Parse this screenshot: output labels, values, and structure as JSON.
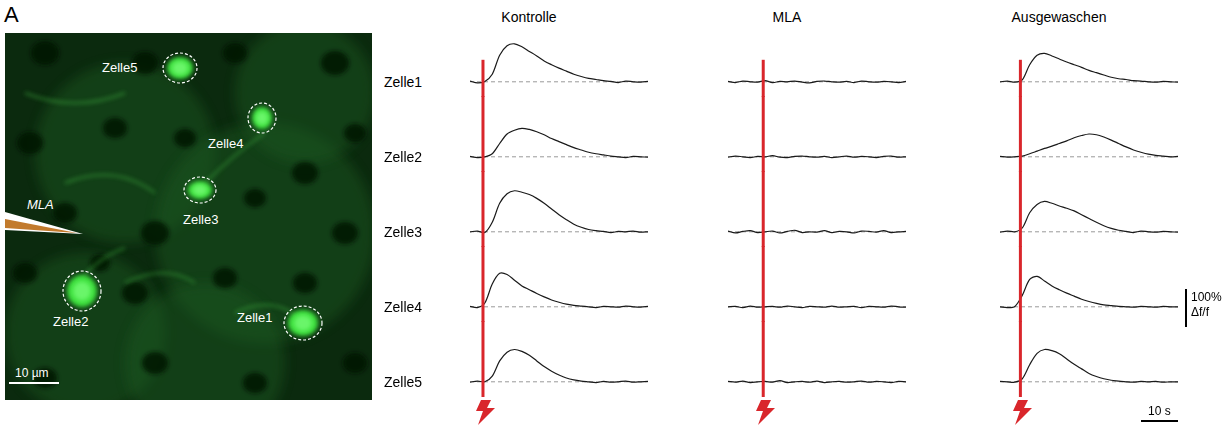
{
  "panel_label": "A",
  "image": {
    "pipette_label": "MLA",
    "cells": [
      "Zelle1",
      "Zelle2",
      "Zelle3",
      "Zelle4",
      "Zelle5"
    ],
    "scale_bar": {
      "value": 10,
      "label": "10 µm"
    }
  },
  "chart_data": {
    "type": "line",
    "x": [
      0,
      2,
      4,
      6,
      8,
      10,
      12,
      14,
      16,
      18,
      20,
      22,
      24,
      26,
      28,
      30,
      32,
      34,
      36,
      38,
      40,
      42,
      44,
      46,
      48
    ],
    "xlim": [
      0,
      48
    ],
    "ylim": [
      -40,
      160
    ],
    "tick_labels": false,
    "grid": false,
    "baseline": 0,
    "columns": [
      {
        "title": "Kontrolle",
        "stimulus_time": 3.5,
        "series": [
          {
            "name": "Zelle1",
            "color": "#1a1a1a",
            "values": [
              2,
              -3,
              1,
              20,
              70,
              95,
              100,
              92,
              80,
              68,
              55,
              45,
              36,
              28,
              20,
              14,
              9,
              6,
              3,
              1,
              -2,
              2,
              0,
              -1,
              1
            ]
          },
          {
            "name": "Zelle2",
            "color": "#1a1a1a",
            "values": [
              1,
              -2,
              0,
              8,
              35,
              60,
              70,
              75,
              72,
              66,
              58,
              48,
              40,
              32,
              24,
              18,
              12,
              8,
              5,
              2,
              0,
              -2,
              1,
              0,
              -1
            ]
          },
          {
            "name": "Zelle3",
            "color": "#1a1a1a",
            "values": [
              0,
              2,
              -2,
              25,
              75,
              100,
              108,
              104,
              98,
              88,
              75,
              60,
              45,
              32,
              20,
              12,
              6,
              3,
              1,
              -2,
              1,
              0,
              2,
              -1,
              0
            ]
          },
          {
            "name": "Zelle4",
            "color": "#1a1a1a",
            "values": [
              1,
              -2,
              10,
              60,
              88,
              85,
              70,
              55,
              45,
              35,
              26,
              18,
              12,
              7,
              4,
              2,
              0,
              -2,
              1,
              0,
              -1,
              2,
              0,
              -1,
              1
            ]
          },
          {
            "name": "Zelle5",
            "color": "#1a1a1a",
            "values": [
              -1,
              2,
              0,
              15,
              55,
              78,
              85,
              80,
              70,
              55,
              40,
              28,
              18,
              10,
              5,
              2,
              0,
              -2,
              1,
              -1,
              0,
              2,
              -1,
              0,
              1
            ]
          }
        ]
      },
      {
        "title": "MLA",
        "stimulus_time": 9.5,
        "series": [
          {
            "name": "Zelle1",
            "color": "#1a1a1a",
            "values": [
              1,
              -2,
              2,
              0,
              -1,
              3,
              -2,
              1,
              0,
              2,
              -1,
              -3,
              1,
              2,
              0,
              -1,
              1,
              -2,
              2,
              0,
              -1,
              1,
              0,
              -2,
              1
            ]
          },
          {
            "name": "Zelle2",
            "color": "#1a1a1a",
            "values": [
              -1,
              2,
              0,
              -2,
              1,
              0,
              3,
              -1,
              -2,
              1,
              2,
              0,
              -1,
              1,
              -2,
              0,
              2,
              -1,
              1,
              0,
              -2,
              1,
              2,
              -1,
              0
            ]
          },
          {
            "name": "Zelle3",
            "color": "#1a1a1a",
            "values": [
              2,
              -3,
              1,
              3,
              -2,
              0,
              2,
              -3,
              1,
              4,
              -2,
              0,
              -1,
              3,
              -2,
              1,
              0,
              -3,
              2,
              1,
              -1,
              3,
              -2,
              0,
              1
            ]
          },
          {
            "name": "Zelle4",
            "color": "#1a1a1a",
            "values": [
              0,
              1,
              -2,
              2,
              -1,
              0,
              1,
              -1,
              2,
              0,
              -2,
              1,
              0,
              -1,
              2,
              -1,
              0,
              1,
              -2,
              1,
              0,
              -1,
              2,
              0,
              -1
            ]
          },
          {
            "name": "Zelle5",
            "color": "#1a1a1a",
            "values": [
              1,
              -1,
              2,
              -2,
              0,
              1,
              -1,
              3,
              -2,
              0,
              1,
              -1,
              2,
              -2,
              0,
              1,
              -1,
              0,
              2,
              -1,
              1,
              0,
              -2,
              1,
              0
            ]
          }
        ]
      },
      {
        "title": "Ausgewaschen",
        "stimulus_time": 5.5,
        "series": [
          {
            "name": "Zelle1",
            "color": "#1a1a1a",
            "values": [
              0,
              2,
              -1,
              5,
              45,
              70,
              75,
              68,
              60,
              52,
              45,
              38,
              30,
              24,
              18,
              12,
              8,
              6,
              3,
              2,
              0,
              -1,
              1,
              0,
              -1
            ]
          },
          {
            "name": "Zelle2",
            "color": "#1a1a1a",
            "values": [
              1,
              -1,
              0,
              2,
              8,
              15,
              22,
              28,
              35,
              42,
              50,
              56,
              60,
              58,
              52,
              44,
              35,
              26,
              18,
              12,
              7,
              4,
              2,
              0,
              1
            ]
          },
          {
            "name": "Zelle3",
            "color": "#1a1a1a",
            "values": [
              -1,
              2,
              0,
              10,
              50,
              72,
              80,
              75,
              68,
              62,
              55,
              45,
              35,
              25,
              16,
              9,
              4,
              1,
              -2,
              2,
              0,
              -1,
              1,
              0,
              -1
            ]
          },
          {
            "name": "Zelle4",
            "color": "#1a1a1a",
            "values": [
              0,
              -2,
              1,
              30,
              72,
              80,
              68,
              55,
              45,
              36,
              28,
              20,
              14,
              9,
              5,
              3,
              1,
              0,
              -1,
              1,
              0,
              -1,
              1,
              0,
              0
            ]
          },
          {
            "name": "Zelle5",
            "color": "#1a1a1a",
            "values": [
              1,
              0,
              -1,
              8,
              45,
              75,
              85,
              82,
              74,
              60,
              46,
              34,
              22,
              14,
              8,
              4,
              2,
              0,
              -1,
              1,
              0,
              1,
              -1,
              0,
              0
            ]
          }
        ]
      }
    ],
    "scale_bars": {
      "y": {
        "value": 100,
        "label": [
          "100%",
          "Δf/f"
        ]
      },
      "x": {
        "value": 10,
        "label": "10 s"
      }
    }
  }
}
